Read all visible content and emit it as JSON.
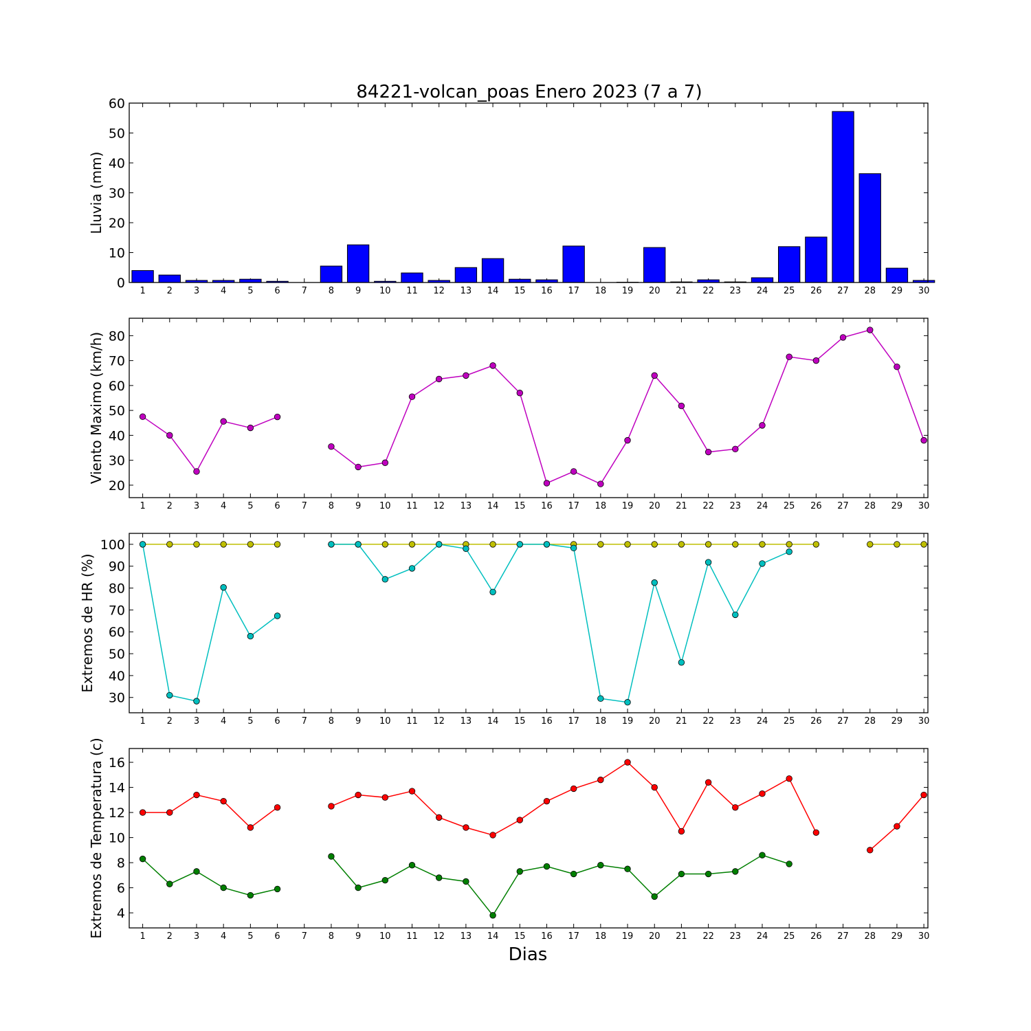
{
  "chart_data": {
    "title": "84221-volcan_poas Enero 2023  (7 a 7)",
    "xlabel": "Dias",
    "days": [
      1,
      2,
      3,
      4,
      5,
      6,
      7,
      8,
      9,
      10,
      11,
      12,
      13,
      14,
      15,
      16,
      17,
      18,
      19,
      20,
      21,
      22,
      23,
      24,
      25,
      26,
      27,
      28,
      29,
      30
    ],
    "panels": [
      {
        "type": "bar",
        "ylabel": "Lluvia (mm)",
        "ylim": [
          0,
          60
        ],
        "yticks": [
          0,
          10,
          20,
          30,
          40,
          50,
          60
        ],
        "series": [
          {
            "color": "#0000ff",
            "values": [
              4.0,
              2.5,
              0.7,
              0.7,
              1.1,
              0.4,
              0,
              5.5,
              12.6,
              0.4,
              3.2,
              0.7,
              5.0,
              8.0,
              1.1,
              0.9,
              12.2,
              0,
              0.1,
              11.7,
              0.2,
              0.9,
              0.2,
              1.6,
              12.0,
              15.2,
              57.2,
              36.4,
              4.8,
              0.7
            ]
          }
        ]
      },
      {
        "type": "line",
        "ylabel": "Viento Maximo (km/h)",
        "ylim": [
          15,
          87
        ],
        "yticks": [
          20,
          30,
          40,
          50,
          60,
          70,
          80
        ],
        "series": [
          {
            "color": "#bf00bf",
            "values": [
              47.5,
              40,
              25.5,
              45.6,
              43,
              47.4,
              null,
              35.5,
              27.3,
              29,
              55.5,
              62.6,
              64,
              68,
              57,
              20.8,
              25.5,
              20.5,
              38,
              64,
              51.8,
              33.3,
              34.5,
              44,
              71.5,
              70,
              79.3,
              82.3,
              67.5,
              38
            ]
          }
        ]
      },
      {
        "type": "line",
        "ylabel": "Extremos de HR (%)",
        "ylim": [
          23,
          105
        ],
        "yticks": [
          30,
          40,
          50,
          60,
          70,
          80,
          90,
          100
        ],
        "series": [
          {
            "color": "#bfbf00",
            "values": [
              100,
              100,
              100,
              100,
              100,
              100,
              null,
              100,
              100,
              100,
              100,
              100,
              100,
              100,
              100,
              100,
              100,
              100,
              100,
              100,
              100,
              100,
              100,
              100,
              100,
              100,
              null,
              100,
              100,
              100
            ]
          },
          {
            "color": "#00bfbf",
            "values": [
              100,
              31,
              28.3,
              80.3,
              58,
              67.3,
              null,
              100,
              100,
              84,
              89,
              100,
              98,
              78.2,
              100,
              100,
              98.3,
              29.5,
              27.8,
              82.5,
              46,
              91.8,
              67.8,
              91.2,
              96.6,
              null,
              null,
              null,
              null,
              null
            ]
          }
        ]
      },
      {
        "type": "line",
        "ylabel": "Extremos de Temperatura (c)",
        "ylim": [
          2.8,
          17.1
        ],
        "yticks": [
          4,
          6,
          8,
          10,
          12,
          14,
          16
        ],
        "series": [
          {
            "color": "#ff0000",
            "values": [
              12,
              12,
              13.4,
              12.9,
              10.8,
              12.4,
              null,
              12.5,
              13.4,
              13.2,
              13.7,
              11.6,
              10.8,
              10.2,
              11.4,
              12.9,
              13.9,
              14.6,
              16,
              14,
              10.5,
              14.4,
              12.4,
              13.5,
              14.7,
              10.4,
              null,
              9,
              10.9,
              13.4
            ]
          },
          {
            "color": "#007f00",
            "values": [
              8.3,
              6.3,
              7.3,
              6,
              5.4,
              5.9,
              null,
              8.5,
              6,
              6.6,
              7.8,
              6.8,
              6.5,
              3.8,
              7.3,
              7.7,
              7.1,
              7.8,
              7.5,
              5.3,
              7.1,
              7.1,
              7.3,
              8.6,
              7.9,
              null,
              null,
              null,
              null,
              null
            ]
          }
        ]
      }
    ]
  }
}
